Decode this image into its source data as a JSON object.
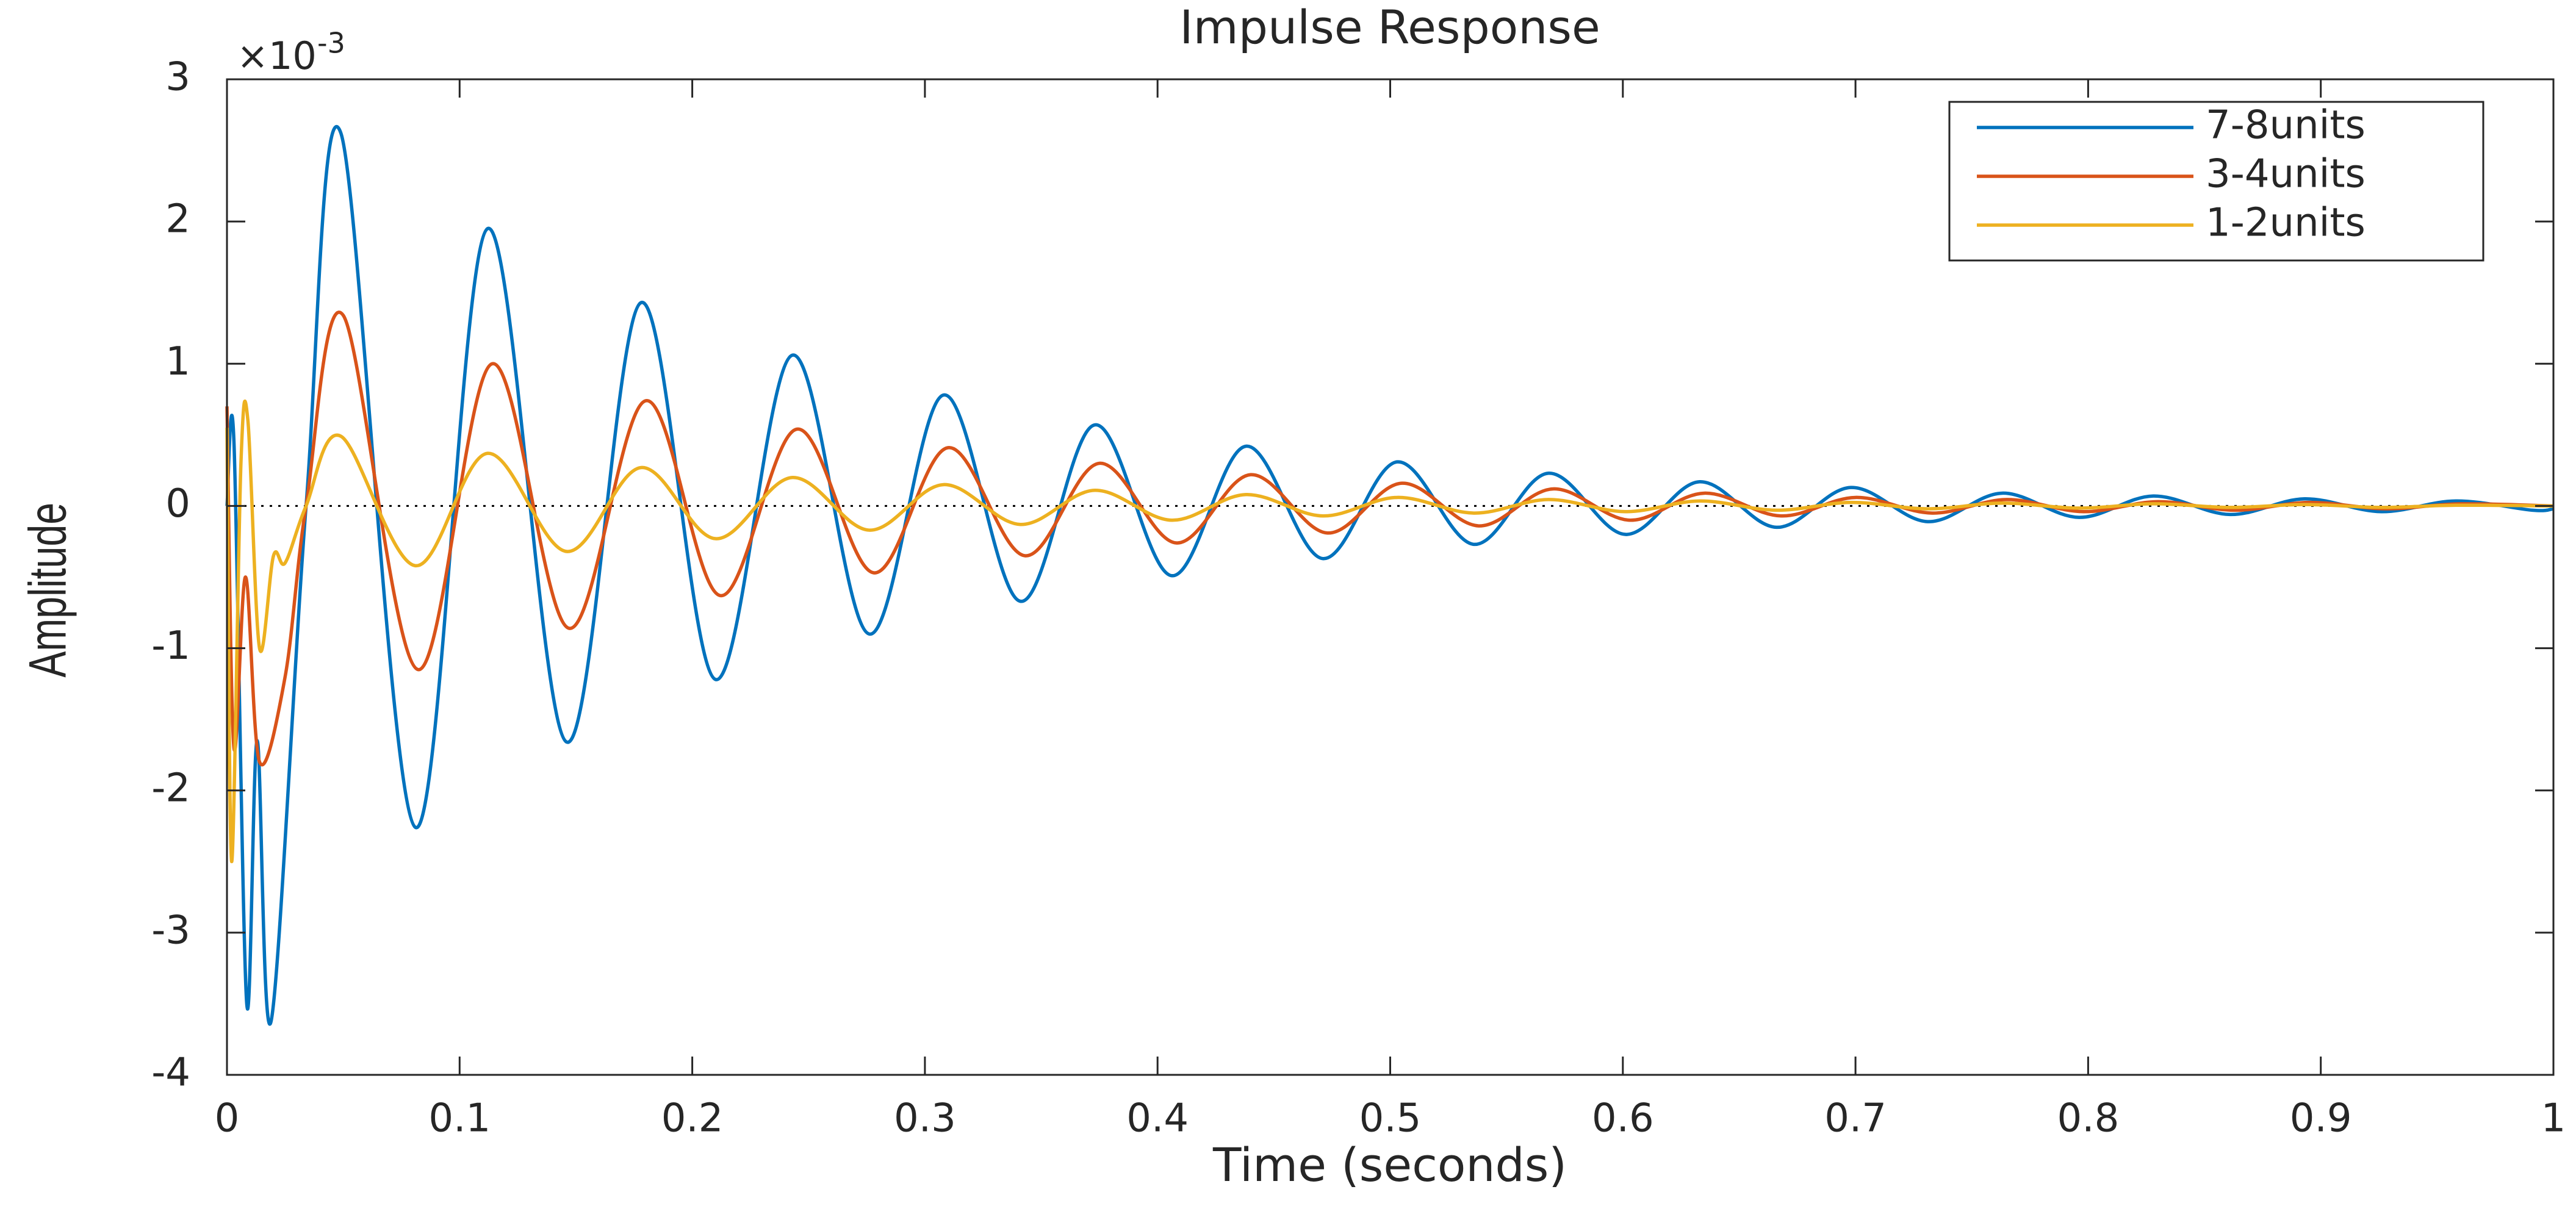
{
  "chart_data": {
    "type": "line",
    "title": "Impulse Response",
    "xlabel": "Time (seconds)",
    "ylabel": "Amplitude",
    "y_multiplier": {
      "base": "×10",
      "exponent": "-3"
    },
    "xlim": [
      0,
      1
    ],
    "xticks": [
      0,
      0.1,
      0.2,
      0.3,
      0.4,
      0.5,
      0.6,
      0.7,
      0.8,
      0.9,
      1
    ],
    "ylim": [
      -4,
      3
    ],
    "yticks": [
      -4,
      -3,
      -2,
      -1,
      0,
      1,
      2,
      3
    ],
    "legend": "upper right",
    "series": [
      {
        "name": "7-8units",
        "color": "#0072BD",
        "x": [
          0,
          0.003,
          0.0085,
          0.013,
          0.019,
          0.034,
          0.049,
          0.081,
          0.112,
          0.146,
          0.178,
          0.21,
          0.243,
          0.276,
          0.308,
          0.341,
          0.373,
          0.406,
          0.438,
          0.471,
          0.503,
          0.536,
          0.568,
          0.601,
          0.633,
          0.666,
          0.698,
          0.731,
          0.763,
          0.796,
          0.828,
          0.861,
          0.893,
          0.926,
          0.958,
          0.991,
          1
        ],
        "values": [
          0,
          0.45,
          -3.5,
          -1.65,
          -3.62,
          0,
          2.62,
          -2.26,
          1.95,
          -1.66,
          1.43,
          -1.22,
          1.06,
          -0.9,
          0.78,
          -0.67,
          0.57,
          -0.49,
          0.42,
          -0.37,
          0.31,
          -0.27,
          0.23,
          -0.2,
          0.17,
          -0.15,
          0.13,
          -0.11,
          0.09,
          -0.08,
          0.07,
          -0.06,
          0.05,
          -0.04,
          0.035,
          -0.03,
          -0.02
        ]
      },
      {
        "name": "3-4units",
        "color": "#D95319",
        "x": [
          0,
          0.003,
          0.008,
          0.014,
          0.025,
          0.034,
          0.05,
          0.082,
          0.114,
          0.147,
          0.18,
          0.212,
          0.245,
          0.278,
          0.31,
          0.343,
          0.375,
          0.408,
          0.44,
          0.473,
          0.505,
          0.538,
          0.57,
          0.603,
          0.635,
          0.668,
          0.7,
          0.733,
          0.765,
          0.798,
          0.83,
          0.863,
          0.895,
          0.928,
          0.96,
          1
        ],
        "values": [
          0.7,
          -1.7,
          -0.5,
          -1.8,
          -1.2,
          0,
          1.34,
          -1.15,
          1.0,
          -0.86,
          0.74,
          -0.63,
          0.54,
          -0.47,
          0.41,
          -0.35,
          0.3,
          -0.26,
          0.22,
          -0.19,
          0.16,
          -0.14,
          0.12,
          -0.1,
          0.09,
          -0.07,
          0.06,
          -0.05,
          0.045,
          -0.04,
          0.03,
          -0.03,
          0.025,
          -0.02,
          0.015,
          0
        ]
      },
      {
        "name": "1-2units",
        "color": "#EDB120",
        "x": [
          0,
          0.002,
          0.006,
          0.009,
          0.014,
          0.02,
          0.025,
          0.034,
          0.049,
          0.081,
          0.112,
          0.146,
          0.178,
          0.21,
          0.243,
          0.276,
          0.308,
          0.341,
          0.373,
          0.406,
          0.438,
          0.471,
          0.503,
          0.536,
          0.568,
          0.601,
          0.633,
          0.666,
          0.698,
          0.731,
          0.763,
          0.796,
          0.828,
          0.861,
          0.893,
          0.926,
          0.958,
          1
        ],
        "values": [
          0.55,
          -2.5,
          0.3,
          0.6,
          -1.0,
          -0.35,
          -0.4,
          0,
          0.49,
          -0.42,
          0.37,
          -0.32,
          0.27,
          -0.23,
          0.2,
          -0.17,
          0.15,
          -0.13,
          0.11,
          -0.1,
          0.08,
          -0.07,
          0.06,
          -0.05,
          0.045,
          -0.04,
          0.035,
          -0.03,
          0.025,
          -0.02,
          0.02,
          -0.015,
          0.015,
          -0.01,
          0.01,
          -0.01,
          0.005,
          0
        ]
      }
    ]
  }
}
